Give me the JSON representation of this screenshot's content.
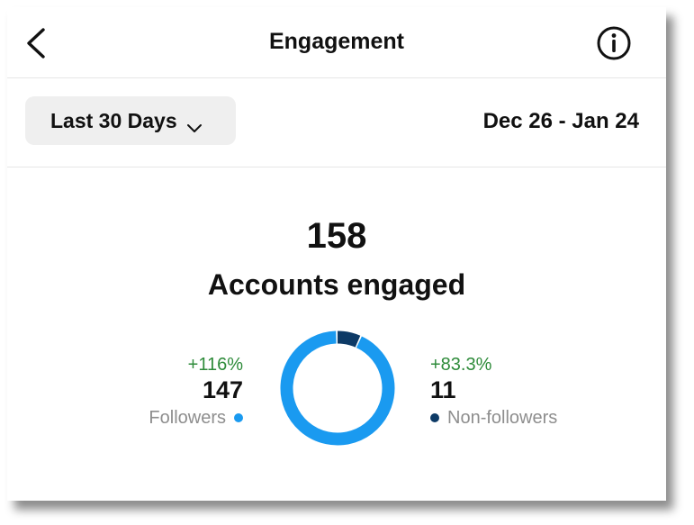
{
  "header": {
    "title": "Engagement",
    "back_icon": "chevron-left-icon",
    "info_icon": "info-circle-icon"
  },
  "filter": {
    "range_label": "Last 30 Days",
    "range_icon": "chevron-down-icon",
    "date_range": "Dec 26 - Jan 24"
  },
  "summary": {
    "total": "158",
    "label": "Accounts engaged"
  },
  "followers": {
    "change": "+116%",
    "count": "147",
    "label": "Followers",
    "color": "#1a9af0"
  },
  "non_followers": {
    "change": "+83.3%",
    "count": "11",
    "label": "Non-followers",
    "color": "#0d3a66"
  },
  "colors": {
    "positive": "#2e8b3a",
    "muted": "#8e8e8e",
    "divider": "#e6e6e6",
    "button_bg": "#efefef"
  }
}
